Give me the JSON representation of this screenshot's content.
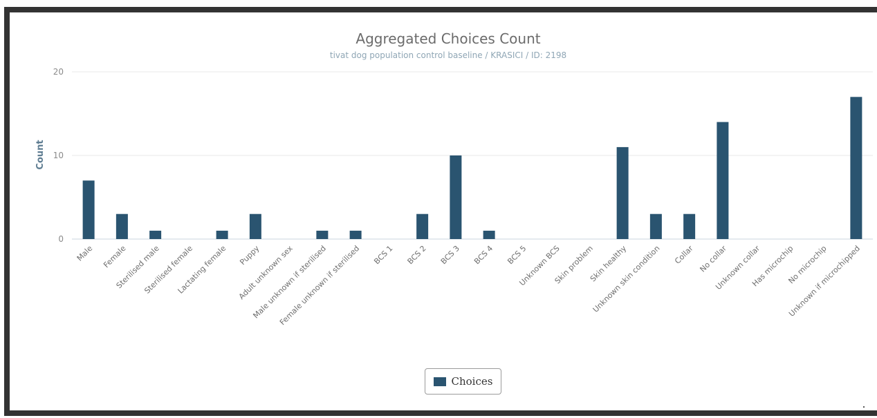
{
  "chart_data": {
    "type": "bar",
    "title": "Aggregated Choices Count",
    "subtitle": "tivat dog population control baseline / KRASICI / ID: 2198",
    "xlabel": "",
    "ylabel": "Count",
    "ylim": [
      0,
      20
    ],
    "yticks": [
      "0",
      "10",
      "20"
    ],
    "grid": true,
    "legend_position": "bottom-center",
    "categories": [
      "Male",
      "Female",
      "Sterilised male",
      "Sterilised female",
      "Lactating female",
      "Puppy",
      "Adult unknown sex",
      "Male unknown if sterilised",
      "Female unknown if sterilised",
      "BCS 1",
      "BCS 2",
      "BCS 3",
      "BCS 4",
      "BCS 5",
      "Unknown BCS",
      "Skin problem",
      "Skin healthy",
      "Unknown skin condition",
      "Collar",
      "No collar",
      "Unknown collar",
      "Has microchip",
      "No microchip",
      "Unknown if microchipped"
    ],
    "series": [
      {
        "name": "Choices",
        "color": "#2a5470",
        "values": [
          7,
          3,
          1,
          0,
          1,
          3,
          0,
          1,
          1,
          0,
          3,
          10,
          1,
          0,
          0,
          0,
          11,
          3,
          3,
          14,
          0,
          0,
          0,
          17
        ]
      }
    ]
  }
}
